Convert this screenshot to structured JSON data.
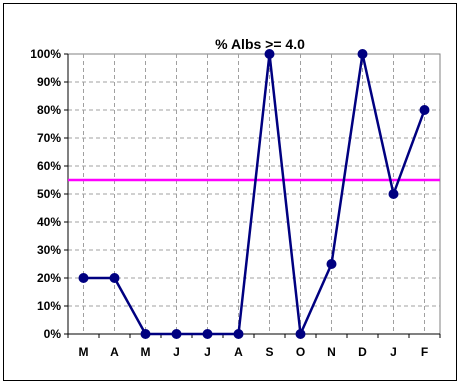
{
  "chart_data": {
    "type": "line",
    "title": "%  Albs >= 4.0",
    "xlabel": "",
    "ylabel": "",
    "categories": [
      "M",
      "A",
      "M",
      "J",
      "J",
      "A",
      "S",
      "O",
      "N",
      "D",
      "J",
      "F"
    ],
    "series": [
      {
        "values": [
          20,
          20,
          0,
          0,
          0,
          0,
          100,
          0,
          25,
          100,
          50,
          80
        ],
        "color": "#000080"
      }
    ],
    "y_ticks": [
      "0%",
      "10%",
      "20%",
      "30%",
      "40%",
      "50%",
      "60%",
      "70%",
      "80%",
      "90%",
      "100%"
    ],
    "ylim": [
      0,
      100
    ],
    "reference_line": {
      "value": 55,
      "color": "#ff00ff"
    },
    "grid": true,
    "legend": "none"
  }
}
